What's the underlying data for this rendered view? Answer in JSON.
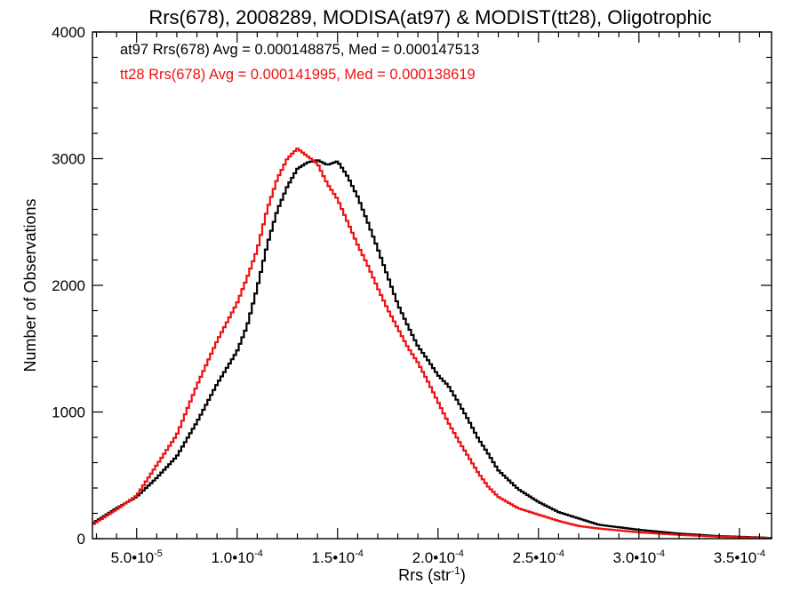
{
  "chart_data": {
    "type": "line",
    "style": "step-histogram",
    "title": "Rrs(678), 2008289, MODISA(at97) & MODIST(tt28), Oligotrophic",
    "xlabel": "Rrs (str",
    "xlabel_sup": "-1",
    "xlabel_close": ")",
    "ylabel": "Number of Observations",
    "xlim": [
      2.8e-05,
      0.000366
    ],
    "ylim": [
      0,
      4000
    ],
    "x_ticks": [
      {
        "value": 5e-05,
        "label": "5.0•10",
        "exp": "-5"
      },
      {
        "value": 0.0001,
        "label": "1.0•10",
        "exp": "-4"
      },
      {
        "value": 0.00015,
        "label": "1.5•10",
        "exp": "-4"
      },
      {
        "value": 0.0002,
        "label": "2.0•10",
        "exp": "-4"
      },
      {
        "value": 0.00025,
        "label": "2.5•10",
        "exp": "-4"
      },
      {
        "value": 0.0003,
        "label": "3.0•10",
        "exp": "-4"
      },
      {
        "value": 0.00035,
        "label": "3.5•10",
        "exp": "-4"
      }
    ],
    "y_ticks": [
      {
        "value": 0,
        "label": "0"
      },
      {
        "value": 1000,
        "label": "1000"
      },
      {
        "value": 2000,
        "label": "2000"
      },
      {
        "value": 3000,
        "label": "3000"
      },
      {
        "value": 4000,
        "label": "4000"
      }
    ],
    "grid": false,
    "annotations": [
      {
        "text": "at97 Rrs(678) Avg = 0.000148875, Med = 0.000147513",
        "color": "#000000"
      },
      {
        "text": "tt28 Rrs(678) Avg = 0.000141995, Med = 0.000138619",
        "color": "#ee1111"
      }
    ],
    "series": [
      {
        "key": "at97",
        "color": "#000000",
        "x": [
          2.8e-05,
          4e-05,
          5e-05,
          6e-05,
          7e-05,
          8e-05,
          9e-05,
          0.0001,
          0.000105,
          0.00011,
          0.000115,
          0.00012,
          0.000125,
          0.00013,
          0.000135,
          0.00014,
          0.000145,
          0.00015,
          0.000155,
          0.00016,
          0.000165,
          0.00017,
          0.000175,
          0.00018,
          0.000185,
          0.00019,
          0.000195,
          0.0002,
          0.000205,
          0.00021,
          0.000215,
          0.00022,
          0.000225,
          0.00023,
          0.00024,
          0.00025,
          0.00026,
          0.00027,
          0.00028,
          0.0003,
          0.00032,
          0.00034,
          0.00036,
          0.000366
        ],
        "y": [
          120,
          240,
          330,
          480,
          650,
          920,
          1220,
          1480,
          1680,
          1980,
          2320,
          2590,
          2780,
          2920,
          2970,
          2990,
          2950,
          2980,
          2860,
          2700,
          2500,
          2290,
          2070,
          1850,
          1680,
          1520,
          1410,
          1290,
          1210,
          1080,
          940,
          790,
          670,
          540,
          390,
          290,
          210,
          160,
          110,
          70,
          40,
          20,
          10,
          5
        ]
      },
      {
        "key": "tt28",
        "color": "#ee1111",
        "x": [
          2.8e-05,
          4e-05,
          5e-05,
          6e-05,
          7e-05,
          8e-05,
          9e-05,
          0.0001,
          0.000105,
          0.00011,
          0.000115,
          0.00012,
          0.000125,
          0.00013,
          0.000135,
          0.00014,
          0.000145,
          0.00015,
          0.000155,
          0.00016,
          0.000165,
          0.00017,
          0.000175,
          0.00018,
          0.000185,
          0.00019,
          0.000195,
          0.0002,
          0.000205,
          0.00021,
          0.000215,
          0.00022,
          0.000225,
          0.00023,
          0.00024,
          0.00025,
          0.00026,
          0.00027,
          0.00028,
          0.0003,
          0.00032,
          0.00034,
          0.00036,
          0.000366
        ],
        "y": [
          110,
          230,
          340,
          580,
          820,
          1210,
          1560,
          1860,
          2060,
          2280,
          2600,
          2840,
          3000,
          3080,
          3020,
          2960,
          2800,
          2680,
          2500,
          2320,
          2160,
          1980,
          1810,
          1660,
          1510,
          1390,
          1240,
          1080,
          920,
          780,
          650,
          520,
          410,
          330,
          240,
          190,
          140,
          100,
          80,
          50,
          30,
          15,
          8,
          4
        ]
      }
    ]
  }
}
